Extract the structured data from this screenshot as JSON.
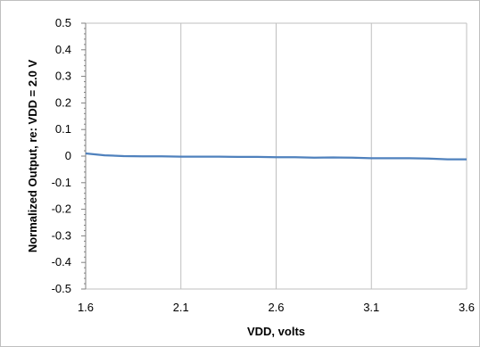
{
  "chart_data": {
    "type": "line",
    "title": "",
    "xlabel": "VDD, volts",
    "ylabel": "Normalized Output, re:  VDD = 2.0 V",
    "xlim": [
      1.6,
      3.6
    ],
    "ylim": [
      -0.5,
      0.5
    ],
    "x_ticks": [
      "1.6",
      "2.1",
      "2.6",
      "3.1",
      "3.6"
    ],
    "y_ticks": [
      "0.5",
      "0.4",
      "0.3",
      "0.2",
      "0.1",
      "0",
      "-0.1",
      "-0.2",
      "-0.3",
      "-0.4",
      "-0.5"
    ],
    "grid": "vertical",
    "legend": "none",
    "series": [
      {
        "color": "#4f81bd",
        "x": [
          1.6,
          1.7,
          1.8,
          1.9,
          2.0,
          2.1,
          2.2,
          2.3,
          2.4,
          2.5,
          2.6,
          2.7,
          2.8,
          2.9,
          3.0,
          3.1,
          3.2,
          3.3,
          3.4,
          3.5,
          3.6
        ],
        "y": [
          0.01,
          0.003,
          0.0,
          -0.001,
          -0.001,
          -0.002,
          -0.002,
          -0.002,
          -0.003,
          -0.003,
          -0.004,
          -0.004,
          -0.006,
          -0.005,
          -0.006,
          -0.008,
          -0.008,
          -0.008,
          -0.009,
          -0.012,
          -0.012
        ]
      }
    ]
  }
}
